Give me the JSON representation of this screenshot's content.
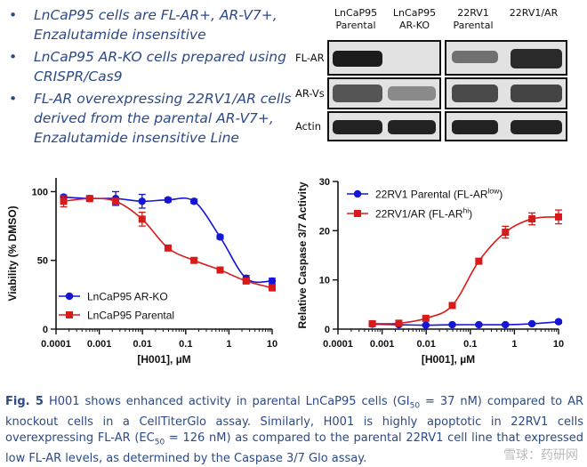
{
  "bullets": [
    "LnCaP95 cells are FL-AR+, AR-V7+, Enzalutamide insensitive",
    "LnCaP95 AR-KO cells prepared using CRISPR/Cas9",
    "FL-AR overexpressing 22RV1/AR cells derived from the parental AR-V7+, Enzalutamide insensitive Line"
  ],
  "blot": {
    "columns": [
      "LnCaP95 Parental",
      "LnCaP95 AR-KO",
      "22RV1 Parental",
      "22RV1/AR"
    ],
    "rows": [
      "FL-AR",
      "AR-Vs",
      "Actin"
    ]
  },
  "chart_data": [
    {
      "type": "line",
      "xscale": "log",
      "xlabel": "[H001], µM",
      "ylabel": "Viability (% DMSO)",
      "xlim": [
        0.0001,
        10
      ],
      "ylim": [
        0,
        110
      ],
      "xticks": [
        "0.0001",
        "0.001",
        "0.01",
        "0.1",
        "1",
        "10"
      ],
      "yticks": [
        "0",
        "50",
        "100"
      ],
      "legend_position": "bottom-left",
      "series": [
        {
          "name": "LnCaP95 AR-KO",
          "color": "#1515d6",
          "marker": "circle",
          "x": [
            0.00015,
            0.0006,
            0.0024,
            0.0098,
            0.039,
            0.156,
            0.625,
            2.5,
            10
          ],
          "y": [
            96,
            95,
            95,
            93,
            94,
            93,
            67,
            37,
            35
          ],
          "err": [
            1.5,
            1.5,
            5,
            5,
            1.5,
            1.5,
            1.5,
            2,
            2
          ]
        },
        {
          "name": "LnCaP95 Parental",
          "color": "#d91a1a",
          "marker": "square",
          "x": [
            0.00015,
            0.0006,
            0.0024,
            0.0098,
            0.039,
            0.156,
            0.625,
            2.5,
            10
          ],
          "y": [
            93,
            95,
            93,
            80,
            59,
            50,
            43,
            35,
            30
          ],
          "err": [
            4,
            1.5,
            1.5,
            5,
            1.5,
            1.5,
            1.5,
            1.5,
            2
          ]
        }
      ]
    },
    {
      "type": "line",
      "xscale": "log",
      "xlabel": "[H001], µM",
      "ylabel": "Relative Caspase 3/7 Activity",
      "xlim": [
        0.0001,
        10
      ],
      "ylim": [
        0,
        30
      ],
      "xticks": [
        "0.0001",
        "0.001",
        "0.01",
        "0.1",
        "1",
        "10"
      ],
      "yticks": [
        "0",
        "10",
        "20",
        "30"
      ],
      "legend_position": "top-left",
      "series": [
        {
          "name": "22RV1 Parental (FL-AR",
          "name_sup": "low",
          "color": "#1515d6",
          "marker": "circle",
          "x": [
            0.0006,
            0.0024,
            0.0098,
            0.039,
            0.156,
            0.625,
            2.5,
            10
          ],
          "y": [
            1.0,
            0.9,
            0.8,
            0.9,
            0.9,
            0.9,
            1.1,
            1.5
          ],
          "err": [
            0.2,
            0.2,
            0.2,
            0.2,
            0.2,
            0.2,
            0.2,
            0.3
          ]
        },
        {
          "name": "22RV1/AR (FL-AR",
          "name_sup": "hi",
          "color": "#d91a1a",
          "marker": "square",
          "x": [
            0.0006,
            0.0024,
            0.0098,
            0.039,
            0.156,
            0.625,
            2.5,
            10
          ],
          "y": [
            1.1,
            1.2,
            2.2,
            4.8,
            13.8,
            19.7,
            22.4,
            22.8
          ],
          "err": [
            0.2,
            0.2,
            0.3,
            0.3,
            0.5,
            1.2,
            1.2,
            1.4
          ]
        }
      ]
    }
  ],
  "caption": {
    "label": "Fig. 5",
    "part1": " H001 shows enhanced activity in parental LnCaP95 cells (GI",
    "sub1": "50",
    "part2": " = 37 nM) compared to AR knockout cells in a CellTiterGlo assay. Similarly, H001 is highly apoptotic in 22RV1 cells overexpressing FL-AR (EC",
    "sub2": "50",
    "part3": " = 126 nM) as compared to the parental 22RV1 cell line that expressed low FL-AR levels, as determined by the Caspase 3/7 Glo assay."
  },
  "watermark": "雪球：药研网"
}
